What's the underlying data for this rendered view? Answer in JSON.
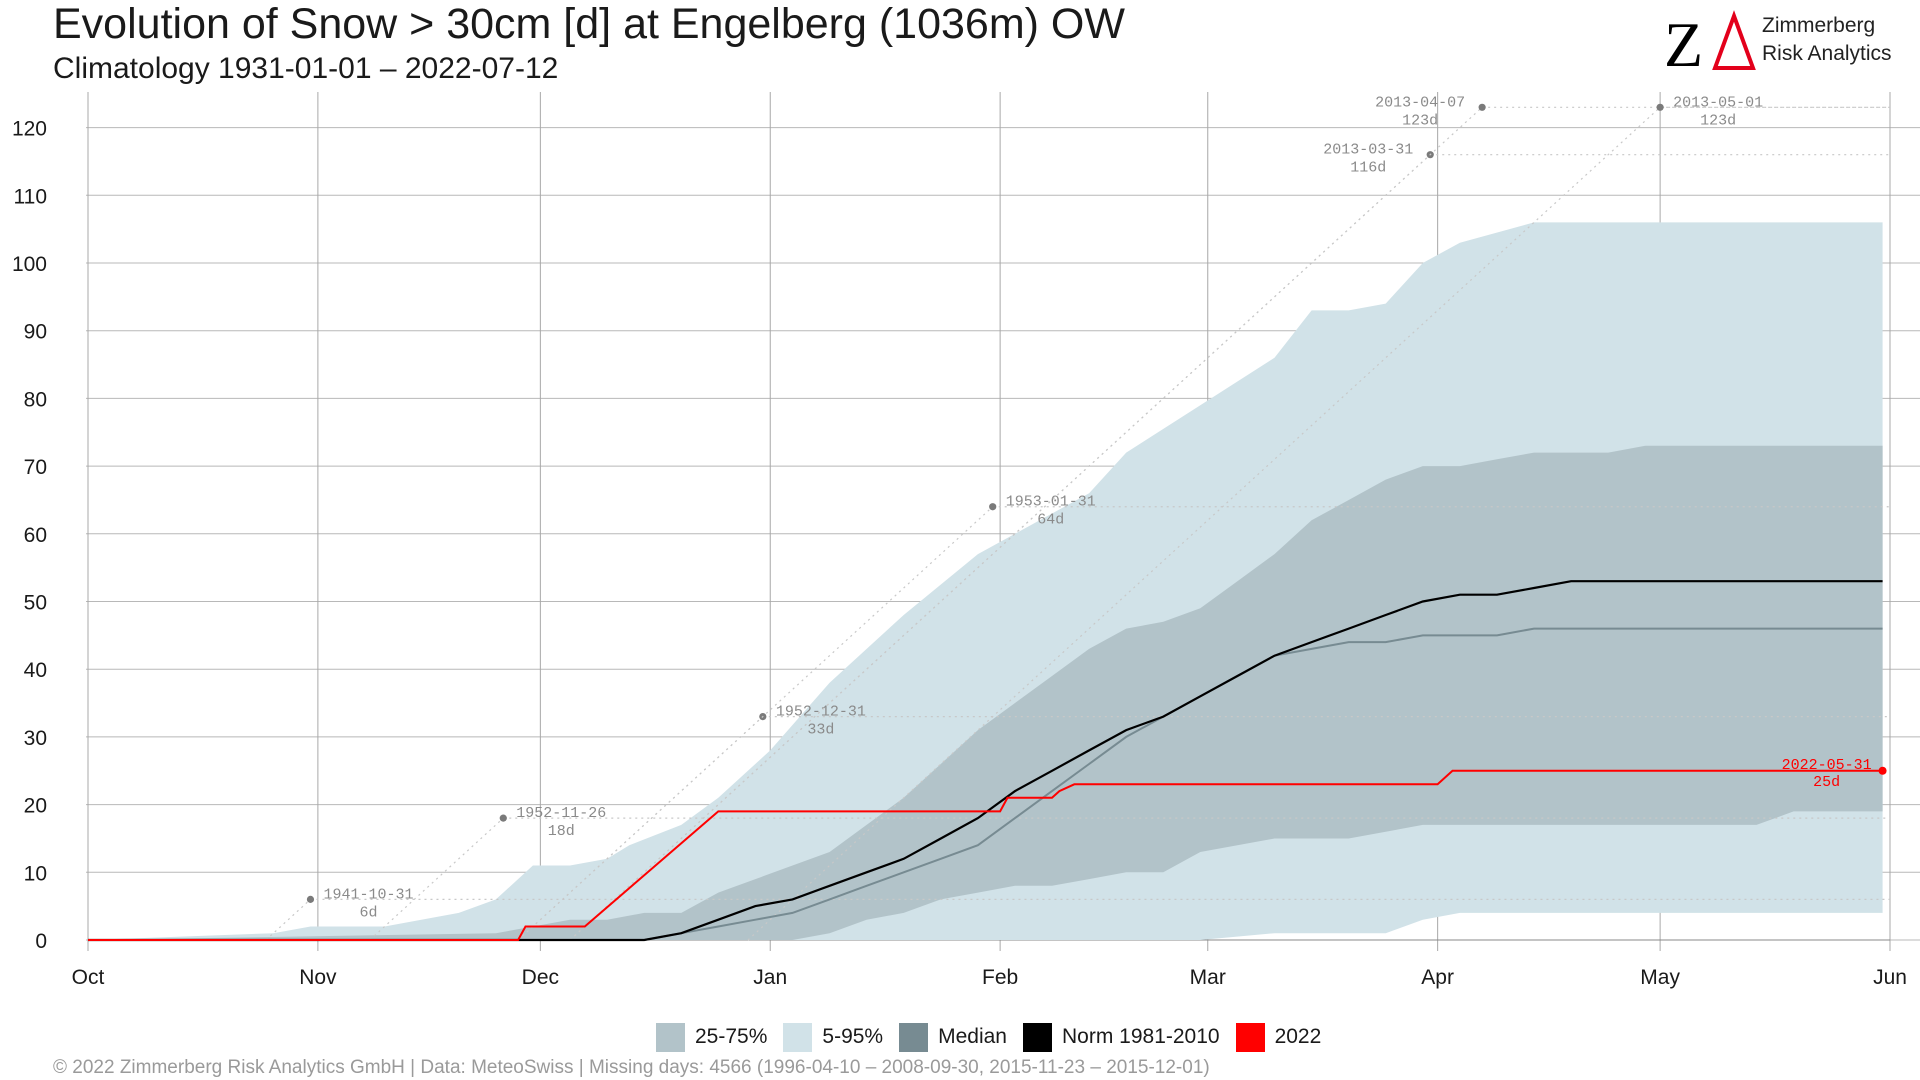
{
  "header": {
    "title": "Evolution of Snow > 30cm [d] at Engelberg (1036m) OW",
    "subtitle": "Climatology 1931-01-01 – 2022-07-12"
  },
  "logo": {
    "mark": "ZΔ",
    "line1": "Zimmerberg",
    "line2": "Risk Analytics",
    "colors": {
      "z": "#000000",
      "delta": "#e3001b"
    }
  },
  "footer": {
    "text": "© 2022 Zimmerberg Risk Analytics GmbH | Data: MeteoSwiss | Missing days: 4566 (1996-04-10 – 2008-09-30, 2015-11-23 – 2015-12-01)"
  },
  "legend": [
    {
      "label": "25-75%",
      "color": "#b2c3c9"
    },
    {
      "label": "5-95%",
      "color": "#d1e2e8"
    },
    {
      "label": "Median",
      "color": "#778b92"
    },
    {
      "label": "Norm 1981-2010",
      "color": "#000000"
    },
    {
      "label": "2022",
      "color": "#ff0000"
    }
  ],
  "chart_data": {
    "type": "area",
    "title": "Evolution of Snow > 30cm [d] at Engelberg (1036m) OW",
    "subtitle": "Climatology 1931-01-01 – 2022-07-12",
    "x_unit": "day of season (Oct 1 = 0)",
    "xlim": [
      0,
      243
    ],
    "ylim": [
      0,
      123
    ],
    "y_ticks": [
      0,
      10,
      20,
      30,
      40,
      50,
      60,
      70,
      80,
      90,
      100,
      110,
      120
    ],
    "x_ticks": [
      {
        "label": "Oct",
        "day": 0
      },
      {
        "label": "Nov",
        "day": 31
      },
      {
        "label": "Dec",
        "day": 61
      },
      {
        "label": "Jan",
        "day": 92
      },
      {
        "label": "Feb",
        "day": 123
      },
      {
        "label": "Mar",
        "day": 151
      },
      {
        "label": "Apr",
        "day": 182
      },
      {
        "label": "May",
        "day": 212
      },
      {
        "label": "Jun",
        "day": 243
      }
    ],
    "grid": true,
    "legend_position": "bottom",
    "colors": {
      "band_5_95": "#d1e2e8",
      "band_25_75": "#b2c3c9",
      "median": "#778b92",
      "norm": "#000000",
      "current": "#ff0000",
      "record_text": "#8a8a8a",
      "record_dot": "#7a7a7a",
      "record_line": "#c8c8c8"
    },
    "band_5_95": {
      "x": [
        0,
        25,
        30,
        40,
        50,
        55,
        60,
        62,
        65,
        70,
        73,
        80,
        85,
        92,
        100,
        110,
        120,
        125,
        135,
        140,
        150,
        160,
        165,
        170,
        175,
        180,
        185,
        195,
        200,
        210,
        230,
        242
      ],
      "lower": [
        0,
        0,
        0,
        0,
        0,
        0,
        0,
        0,
        0,
        0,
        0,
        0,
        0,
        0,
        0,
        0,
        0,
        0,
        0,
        0,
        0,
        1,
        1,
        1,
        1,
        3,
        4,
        4,
        4,
        4,
        4,
        4
      ],
      "upper": [
        0,
        1,
        2,
        2,
        4,
        6,
        11,
        11,
        11,
        12,
        14,
        17,
        21,
        28,
        38,
        48,
        57,
        60,
        66,
        72,
        79,
        86,
        93,
        93,
        94,
        100,
        103,
        106,
        106,
        106,
        106,
        106
      ]
    },
    "band_25_75": {
      "x": [
        0,
        55,
        60,
        65,
        70,
        75,
        80,
        85,
        90,
        95,
        100,
        105,
        110,
        115,
        120,
        125,
        130,
        135,
        140,
        145,
        150,
        155,
        160,
        165,
        170,
        175,
        180,
        185,
        190,
        195,
        200,
        205,
        210,
        215,
        220,
        225,
        230,
        235,
        242
      ],
      "lower": [
        0,
        0,
        0,
        0,
        0,
        0,
        0,
        0,
        0,
        0,
        1,
        3,
        4,
        6,
        7,
        8,
        8,
        9,
        10,
        10,
        13,
        14,
        15,
        15,
        15,
        16,
        17,
        17,
        17,
        17,
        17,
        17,
        17,
        17,
        17,
        17,
        19,
        19,
        19
      ],
      "upper": [
        0,
        1,
        2,
        3,
        3,
        4,
        4,
        7,
        9,
        11,
        13,
        17,
        21,
        26,
        31,
        35,
        39,
        43,
        46,
        47,
        49,
        53,
        57,
        62,
        65,
        68,
        70,
        70,
        71,
        72,
        72,
        72,
        73,
        73,
        73,
        73,
        73,
        73,
        73
      ]
    },
    "median": {
      "x": [
        0,
        75,
        80,
        85,
        90,
        95,
        100,
        105,
        110,
        115,
        120,
        125,
        130,
        135,
        140,
        145,
        150,
        155,
        160,
        165,
        170,
        175,
        180,
        185,
        190,
        195,
        200,
        205,
        210,
        215,
        220,
        242
      ],
      "y": [
        0,
        0,
        1,
        2,
        3,
        4,
        6,
        8,
        10,
        12,
        14,
        18,
        22,
        26,
        30,
        33,
        36,
        39,
        42,
        43,
        44,
        44,
        45,
        45,
        45,
        46,
        46,
        46,
        46,
        46,
        46,
        46
      ]
    },
    "norm_1981_2010": {
      "x": [
        0,
        60,
        65,
        70,
        75,
        80,
        85,
        90,
        95,
        100,
        105,
        110,
        115,
        120,
        125,
        130,
        135,
        140,
        145,
        150,
        155,
        160,
        165,
        170,
        175,
        180,
        185,
        190,
        195,
        200,
        210,
        220,
        242
      ],
      "y": [
        0,
        0,
        0,
        0,
        0,
        1,
        3,
        5,
        6,
        8,
        10,
        12,
        15,
        18,
        22,
        25,
        28,
        31,
        33,
        36,
        39,
        42,
        44,
        46,
        48,
        50,
        51,
        51,
        52,
        53,
        53,
        53,
        53
      ]
    },
    "current_2022": {
      "x": [
        0,
        58,
        59,
        67,
        85,
        123,
        124,
        130,
        131,
        133,
        182,
        184,
        242
      ],
      "y": [
        0,
        0,
        2,
        2,
        19,
        19,
        21,
        21,
        22,
        23,
        23,
        25,
        25
      ]
    },
    "current_end_label": {
      "date": "2022-05-31",
      "value": "25d"
    },
    "records": [
      {
        "date": "1941-10-31",
        "value": "6d"
      },
      {
        "date": "1952-11-26",
        "value": "18d"
      },
      {
        "date": "1952-12-31",
        "value": "33d"
      },
      {
        "date": "1953-01-31",
        "value": "64d"
      },
      {
        "date": "2013-03-31",
        "value": "116d"
      },
      {
        "date": "2013-04-07",
        "value": "123d"
      },
      {
        "date": "2013-05-01",
        "value": "123d"
      }
    ]
  }
}
